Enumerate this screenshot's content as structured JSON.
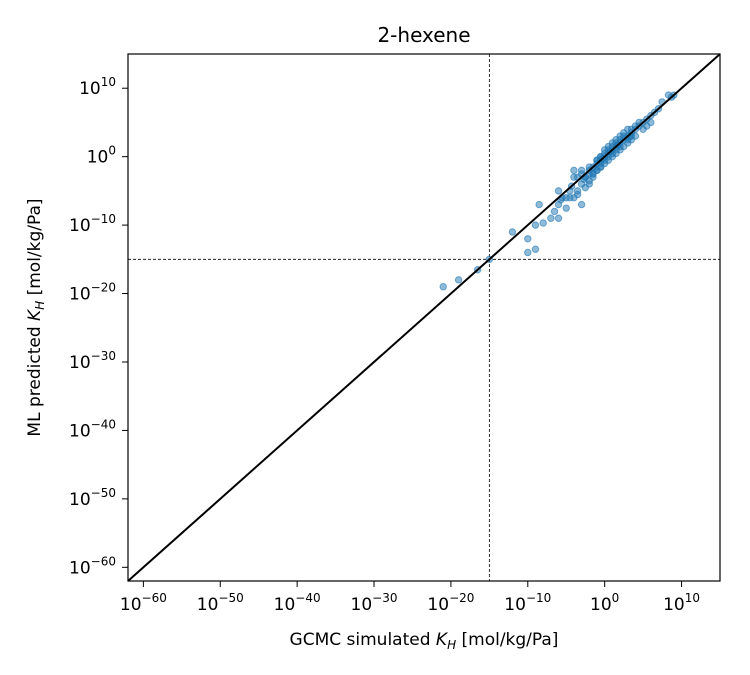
{
  "chart_data": {
    "type": "scatter",
    "title": "2-hexene",
    "xlabel": {
      "prefix": "GCMC simulated ",
      "var": "K",
      "sub": "H",
      "suffix": " [mol/kg/Pa]"
    },
    "ylabel": {
      "prefix": "ML predicted ",
      "var": "K",
      "sub": "H",
      "suffix": " [mol/kg/Pa]"
    },
    "scale": "log",
    "xlim_exp": [
      -62,
      15
    ],
    "ylim_exp": [
      -62,
      15
    ],
    "x_ticks": [
      {
        "base": "10",
        "exp": "−60"
      },
      {
        "base": "10",
        "exp": "−50"
      },
      {
        "base": "10",
        "exp": "−40"
      },
      {
        "base": "10",
        "exp": "−30"
      },
      {
        "base": "10",
        "exp": "−20"
      },
      {
        "base": "10",
        "exp": "−10"
      },
      {
        "base": "10",
        "exp": "0"
      },
      {
        "base": "10",
        "exp": "10"
      }
    ],
    "y_ticks": [
      {
        "base": "10",
        "exp": "−60"
      },
      {
        "base": "10",
        "exp": "−50"
      },
      {
        "base": "10",
        "exp": "−40"
      },
      {
        "base": "10",
        "exp": "−30"
      },
      {
        "base": "10",
        "exp": "−20"
      },
      {
        "base": "10",
        "exp": "−10"
      },
      {
        "base": "10",
        "exp": "0"
      },
      {
        "base": "10",
        "exp": "10"
      }
    ],
    "tick_exponents": [
      -60,
      -50,
      -40,
      -30,
      -20,
      -10,
      0,
      10
    ],
    "reference_lines": {
      "x": 1e-15,
      "y": 1e-15,
      "style": "dashed"
    },
    "diagonal": true,
    "marker_color": "#1f77b4",
    "line_color": "#000000",
    "points": [
      [
        1e-21,
        1e-19
      ],
      [
        1e-19,
        1e-18
      ],
      [
        3e-17,
        3e-17
      ],
      [
        1e-15,
        1e-15
      ],
      [
        1e-12,
        1e-11
      ],
      [
        1e-10,
        1e-12
      ],
      [
        1e-09,
        1e-10
      ],
      [
        1e-10,
        1e-14
      ],
      [
        1e-09,
        3e-14
      ],
      [
        3e-09,
        1e-07
      ],
      [
        1e-08,
        2e-10
      ],
      [
        1e-07,
        1e-09
      ],
      [
        3e-07,
        1e-08
      ],
      [
        1e-06,
        1e-09
      ],
      [
        1e-06,
        1e-07
      ],
      [
        3e-06,
        1e-06
      ],
      [
        1e-05,
        3e-08
      ],
      [
        3e-05,
        1e-05
      ],
      [
        0.0001,
        1e-06
      ],
      [
        0.0001,
        0.001
      ],
      [
        0.0003,
        1e-05
      ],
      [
        0.0003,
        3e-06
      ],
      [
        0.001,
        1e-07
      ],
      [
        0.001,
        0.0001
      ],
      [
        0.003,
        0.001
      ],
      [
        0.01,
        0.0003
      ],
      [
        0.01,
        0.01
      ],
      [
        0.03,
        0.001
      ],
      [
        0.03,
        0.03
      ],
      [
        0.1,
        0.01
      ],
      [
        0.1,
        0.1
      ],
      [
        0.3,
        0.1
      ],
      [
        0.3,
        1
      ],
      [
        1,
        0.3
      ],
      [
        1,
        1
      ],
      [
        3,
        3
      ],
      [
        3,
        1
      ],
      [
        10,
        10
      ],
      [
        10,
        1
      ],
      [
        30,
        30
      ],
      [
        30,
        10
      ],
      [
        100,
        100
      ],
      [
        100,
        10
      ],
      [
        300,
        1000
      ],
      [
        1000.0,
        300
      ],
      [
        1000.0,
        10000.0
      ],
      [
        3000.0,
        3000.0
      ],
      [
        10000.0,
        10000.0
      ],
      [
        30000.0,
        100000.0
      ],
      [
        100000.0,
        10000.0
      ],
      [
        300000.0,
        300000.0
      ],
      [
        1000000.0,
        1000000.0
      ],
      [
        3000000.0,
        3000000.0
      ],
      [
        10000000.0,
        10000000.0
      ],
      [
        30000000.0,
        100000000.0
      ],
      [
        1e-06,
        1e-05
      ],
      [
        3e-05,
        1e-06
      ],
      [
        0.0001,
        0.01
      ],
      [
        0.001,
        0.01
      ],
      [
        0.01,
        0.0001
      ],
      [
        0.003,
        3e-05
      ],
      [
        0.01,
        0.003
      ],
      [
        0.1,
        0.01
      ],
      [
        0.3,
        0.3
      ],
      [
        1,
        3
      ],
      [
        3,
        0.3
      ],
      [
        10,
        3
      ],
      [
        30,
        3
      ],
      [
        100,
        30
      ],
      [
        300.0,
        300.0
      ],
      [
        300.0,
        30
      ],
      [
        1000.0,
        1000.0
      ],
      [
        3000.0,
        1000.0
      ],
      [
        10000.0,
        1000.0
      ],
      [
        30000.0,
        30000.0
      ],
      [
        100000.0,
        100000.0
      ],
      [
        300000.0,
        30000.0
      ],
      [
        1000000.0,
        100000.0
      ],
      [
        3,
        10
      ],
      [
        10,
        30
      ],
      [
        30,
        100
      ],
      [
        100,
        300
      ],
      [
        0.03,
        0.003
      ],
      [
        0.3,
        0.03
      ],
      [
        1,
        0.1
      ],
      [
        0.003,
        0.001
      ],
      [
        0.03,
        0.003
      ],
      [
        0.1,
        0.3
      ],
      [
        1,
        10
      ],
      [
        3,
        30
      ],
      [
        10.0,
        100.0
      ],
      [
        30.0,
        300.0
      ],
      [
        100.0,
        1000.0
      ],
      [
        300.0,
        3000.0
      ],
      [
        1000.0,
        100.0
      ],
      [
        3000.0,
        300.0
      ],
      [
        0.01,
        0.03
      ],
      [
        0.1,
        0.3
      ],
      [
        0.3,
        0.03
      ],
      [
        10000.0,
        30000.0
      ],
      [
        3000.0,
        10000.0
      ],
      [
        1e-05,
        1e-06
      ],
      [
        0.0003,
        0.001
      ],
      [
        0.001,
        0.003
      ],
      [
        0.3,
        1
      ],
      [
        2000.0,
        1000.0
      ],
      [
        50.0,
        50.0
      ],
      [
        5,
        5
      ],
      [
        0.5,
        0.5
      ],
      [
        0.05,
        0.02
      ],
      [
        0.002,
        0.0005
      ],
      [
        5e-05,
        5e-05
      ],
      [
        2e-06,
        5e-07
      ],
      [
        500000000.0,
        500000000.0
      ],
      [
        200000000.0,
        1000000000.0
      ],
      [
        1000000000.0,
        1000000000.0
      ]
    ]
  }
}
